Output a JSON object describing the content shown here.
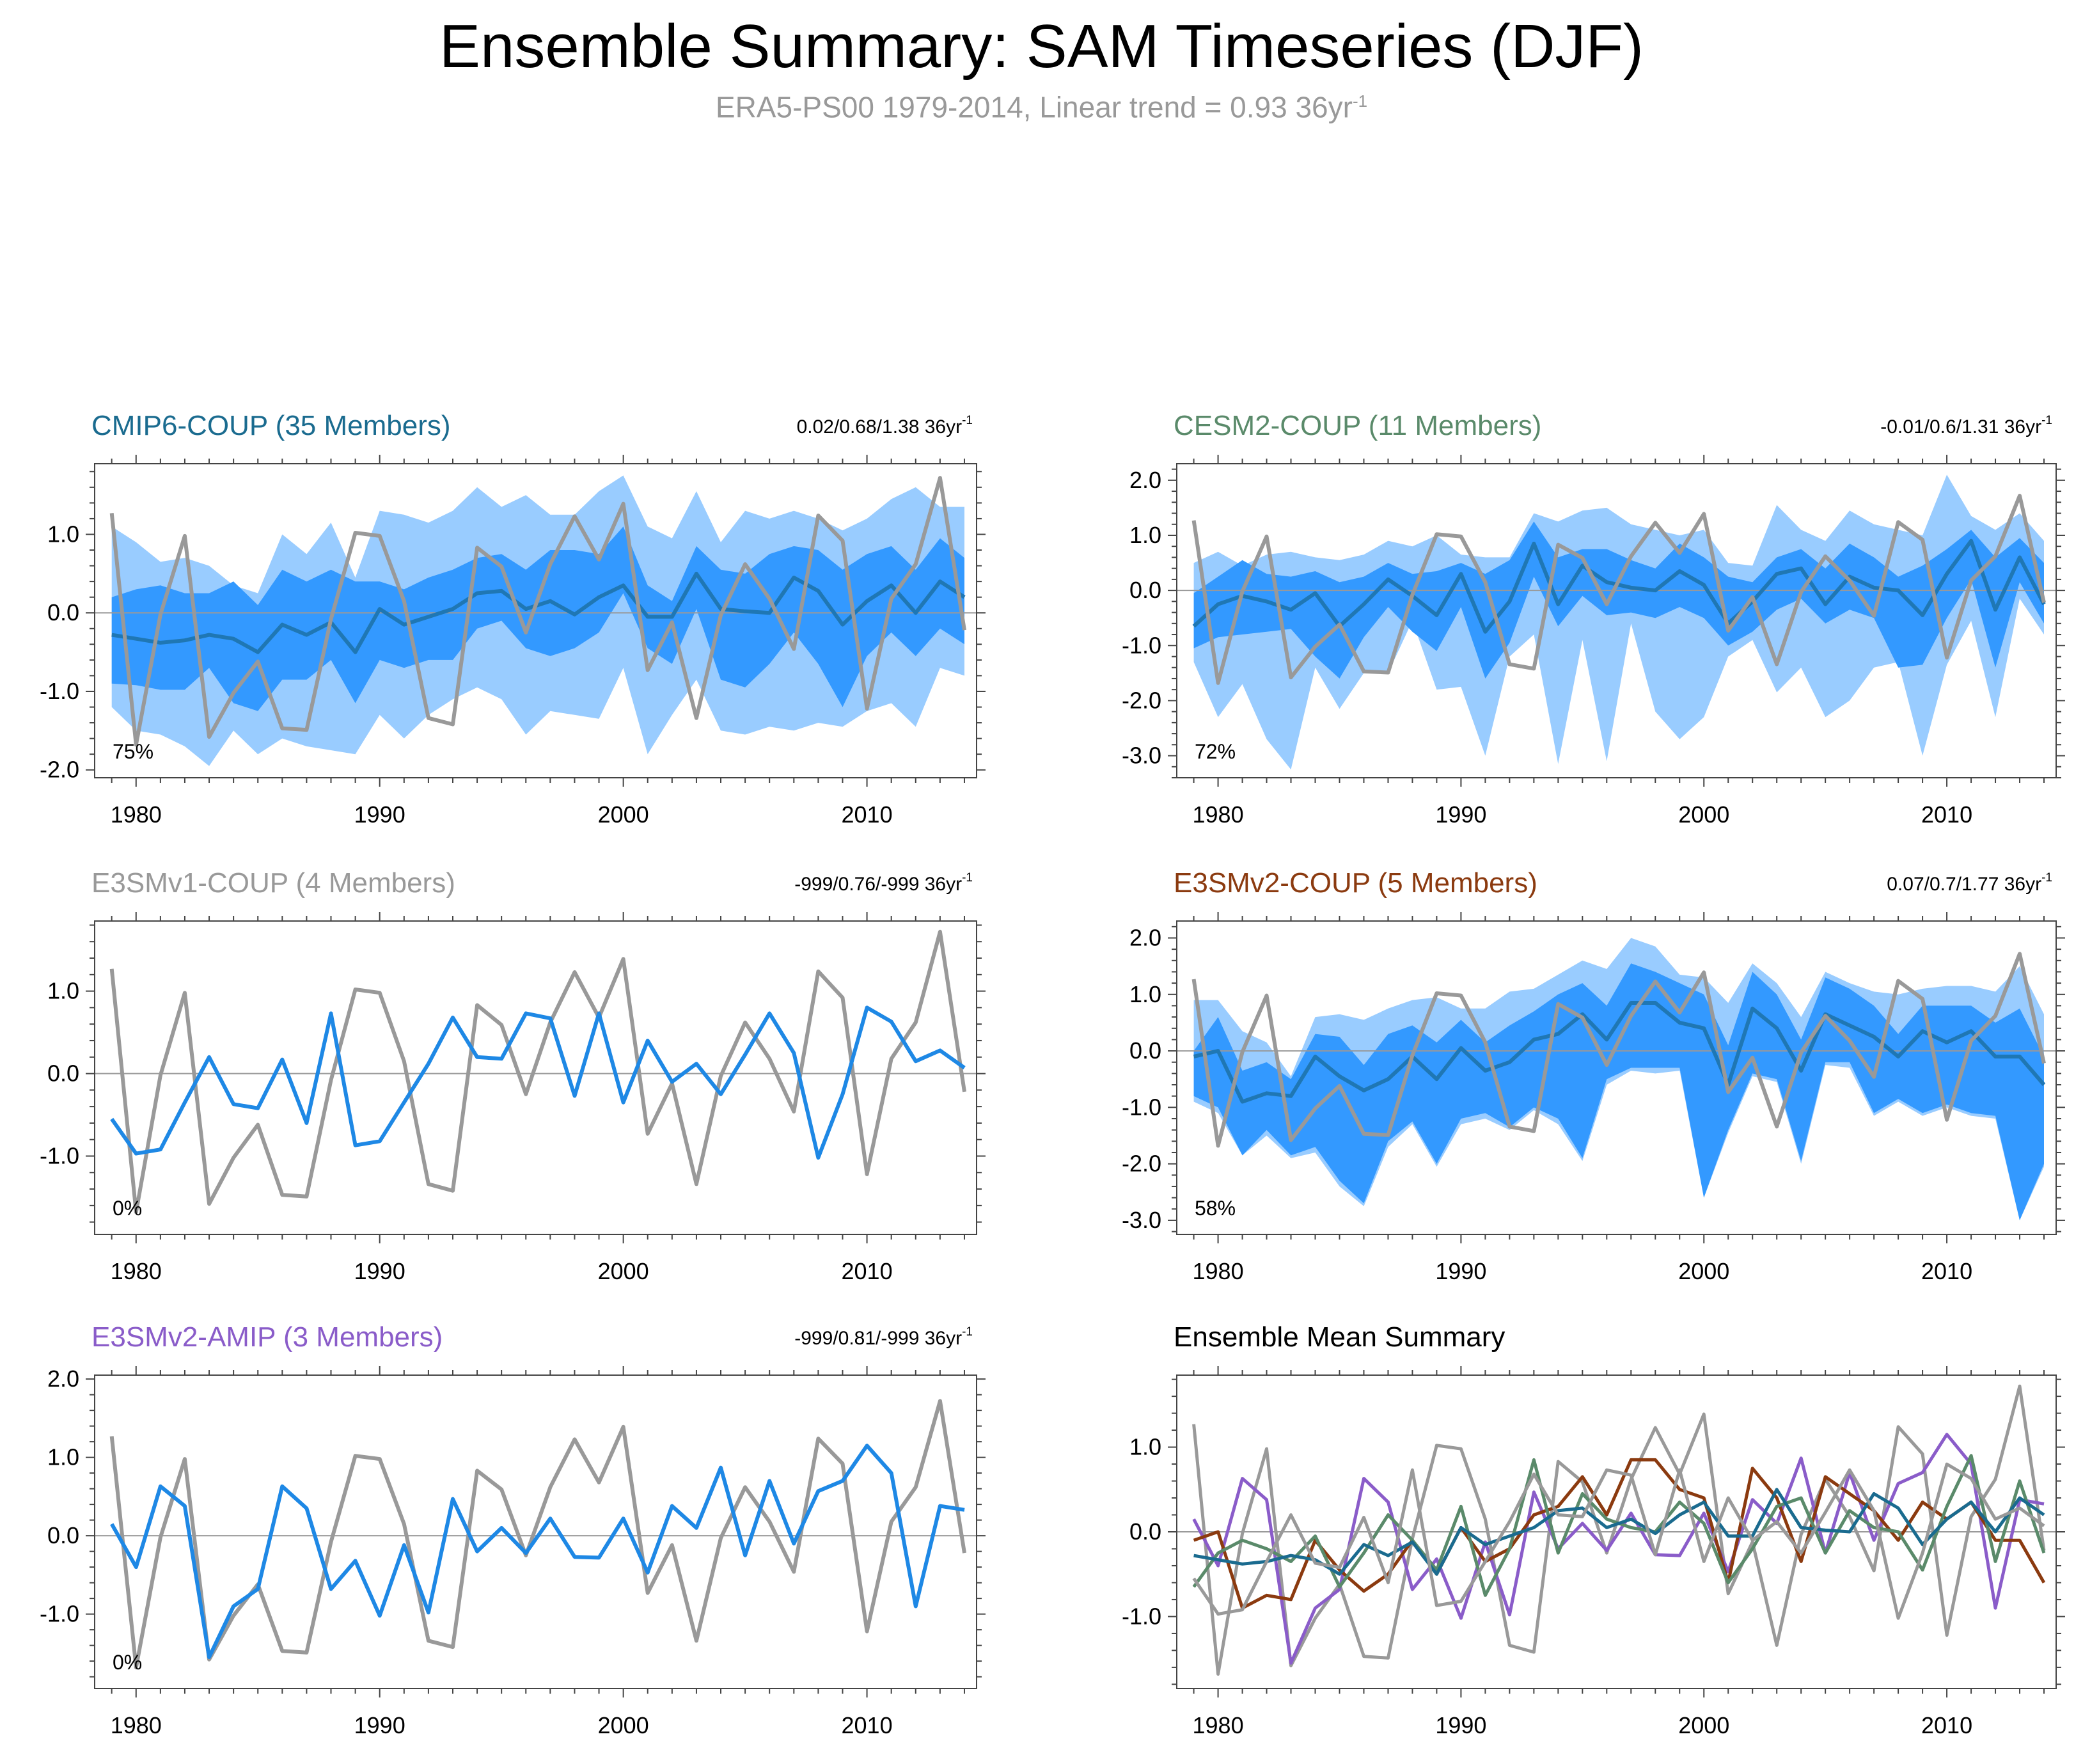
{
  "title": "Ensemble Summary: SAM Timeseries (DJF)",
  "subtitle": {
    "text": "ERA5-PS00 1979-2014, Linear trend = 0.93 36yr",
    "sup": "-1",
    "color": "#999999"
  },
  "chart_data": {
    "type": "line",
    "years": [
      1979,
      1980,
      1981,
      1982,
      1983,
      1984,
      1985,
      1986,
      1987,
      1988,
      1989,
      1990,
      1991,
      1992,
      1993,
      1994,
      1995,
      1996,
      1997,
      1998,
      1999,
      2000,
      2001,
      2002,
      2003,
      2004,
      2005,
      2006,
      2007,
      2008,
      2009,
      2010,
      2011,
      2012,
      2013,
      2014
    ],
    "xlim": [
      1978.3,
      2014.5
    ],
    "xticks": [
      1980,
      1990,
      2000,
      2010
    ],
    "observation": {
      "name": "ERA5-PS00",
      "color": "#999999",
      "values": [
        1.27,
        -1.68,
        -0.02,
        0.98,
        -1.58,
        -1.02,
        -0.62,
        -1.47,
        -1.49,
        -0.08,
        1.02,
        0.98,
        0.15,
        -1.34,
        -1.42,
        0.83,
        0.59,
        -0.25,
        0.62,
        1.23,
        0.68,
        1.39,
        -0.73,
        -0.12,
        -1.34,
        -0.03,
        0.62,
        0.18,
        -0.46,
        1.24,
        0.92,
        -1.22,
        0.18,
        0.62,
        1.72,
        -0.22
      ]
    },
    "panels": [
      {
        "id": "cmip6",
        "title": "CMIP6-COUP (35 Members)",
        "title_color": "#1a6b8f",
        "trend": "0.02/0.68/1.38 36yr",
        "trend_sup": "-1",
        "percent": "75%",
        "ylim": [
          -2.1,
          1.9
        ],
        "yticks": [
          1.0,
          0.0,
          -1.0,
          -2.0
        ],
        "ytick_labels": [
          "1.0",
          "0.0",
          "-1.0",
          "-2.0"
        ],
        "mean_color": "#1f77b4",
        "mean": [
          -0.28,
          -0.33,
          -0.38,
          -0.35,
          -0.28,
          -0.33,
          -0.5,
          -0.15,
          -0.28,
          -0.12,
          -0.5,
          0.05,
          -0.15,
          -0.05,
          0.05,
          0.25,
          0.28,
          0.05,
          0.15,
          -0.02,
          0.2,
          0.35,
          -0.05,
          -0.05,
          0.5,
          0.05,
          0.02,
          0.0,
          0.45,
          0.28,
          -0.15,
          0.15,
          0.35,
          0.0,
          0.4,
          0.2
        ],
        "inner_lo": [
          -0.9,
          -0.92,
          -0.98,
          -0.98,
          -0.7,
          -1.15,
          -1.25,
          -0.85,
          -0.85,
          -0.6,
          -1.15,
          -0.6,
          -0.7,
          -0.6,
          -0.6,
          -0.2,
          -0.1,
          -0.45,
          -0.55,
          -0.45,
          -0.25,
          0.25,
          -0.45,
          -0.65,
          0.05,
          -0.85,
          -0.95,
          -0.65,
          -0.25,
          -0.65,
          -1.2,
          -0.55,
          -0.25,
          -0.55,
          -0.2,
          -0.4
        ],
        "inner_hi": [
          0.2,
          0.3,
          0.35,
          0.25,
          0.25,
          0.4,
          0.1,
          0.55,
          0.4,
          0.55,
          0.4,
          0.4,
          0.3,
          0.45,
          0.55,
          0.7,
          0.75,
          0.55,
          0.8,
          0.8,
          0.75,
          1.1,
          0.35,
          0.15,
          0.85,
          0.55,
          0.5,
          0.75,
          0.85,
          0.8,
          0.55,
          0.75,
          0.85,
          0.55,
          0.95,
          0.7
        ],
        "outer_lo": [
          -1.2,
          -1.5,
          -1.55,
          -1.7,
          -1.95,
          -1.5,
          -1.8,
          -1.6,
          -1.7,
          -1.75,
          -1.8,
          -1.3,
          -1.6,
          -1.3,
          -1.1,
          -0.95,
          -1.1,
          -1.55,
          -1.25,
          -1.3,
          -1.35,
          -0.7,
          -1.8,
          -1.3,
          -0.85,
          -1.5,
          -1.55,
          -1.45,
          -1.5,
          -1.4,
          -1.45,
          -1.25,
          -1.15,
          -1.45,
          -0.7,
          -0.8
        ],
        "outer_hi": [
          1.1,
          0.9,
          0.65,
          0.7,
          0.6,
          0.35,
          0.25,
          1.0,
          0.75,
          1.15,
          0.45,
          1.3,
          1.25,
          1.15,
          1.3,
          1.6,
          1.35,
          1.5,
          1.25,
          1.25,
          1.55,
          1.75,
          1.1,
          0.95,
          1.55,
          0.9,
          1.3,
          1.2,
          1.3,
          1.2,
          1.05,
          1.2,
          1.45,
          1.6,
          1.35,
          1.35
        ],
        "lines": []
      },
      {
        "id": "cesm2",
        "title": "CESM2-COUP (11 Members)",
        "title_color": "#5a8a6a",
        "trend": "-0.01/0.6/1.31 36yr",
        "trend_sup": "-1",
        "percent": "72%",
        "ylim": [
          -3.4,
          2.3
        ],
        "yticks": [
          2.0,
          1.0,
          0.0,
          -1.0,
          -2.0,
          -3.0
        ],
        "ytick_labels": [
          "2.0",
          "1.0",
          "0.0",
          "-1.0",
          "-2.0",
          "-3.0"
        ],
        "mean_color": "#1f77b4",
        "mean": [
          -0.65,
          -0.25,
          -0.1,
          -0.2,
          -0.35,
          -0.05,
          -0.65,
          -0.25,
          0.2,
          -0.1,
          -0.45,
          0.3,
          -0.75,
          -0.2,
          0.85,
          -0.25,
          0.45,
          0.15,
          0.05,
          0.0,
          0.35,
          0.1,
          -0.6,
          -0.2,
          0.3,
          0.4,
          -0.25,
          0.25,
          0.05,
          0.0,
          -0.45,
          0.3,
          0.9,
          -0.35,
          0.6,
          -0.25
        ],
        "inner_lo": [
          -1.05,
          -0.85,
          -0.8,
          -0.75,
          -0.7,
          -1.2,
          -1.6,
          -0.85,
          -0.3,
          -0.75,
          -1.1,
          -0.3,
          -1.6,
          -0.95,
          0.25,
          -0.65,
          -0.1,
          -0.45,
          -0.4,
          -0.5,
          -0.3,
          -0.5,
          -1.0,
          -0.75,
          -0.35,
          -0.15,
          -0.6,
          -0.35,
          -0.5,
          -1.4,
          -1.35,
          -0.5,
          0.2,
          -1.4,
          0.15,
          -0.6
        ],
        "inner_hi": [
          -0.05,
          0.25,
          0.55,
          0.3,
          0.25,
          0.35,
          0.15,
          0.25,
          0.5,
          0.3,
          0.35,
          0.5,
          0.3,
          0.55,
          1.25,
          0.6,
          0.75,
          0.75,
          0.55,
          0.4,
          0.85,
          0.6,
          0.25,
          0.15,
          0.6,
          0.75,
          0.4,
          0.85,
          0.6,
          0.25,
          0.45,
          0.75,
          1.1,
          0.6,
          0.95,
          0.5
        ],
        "outer_lo": [
          -1.3,
          -2.3,
          -1.7,
          -2.7,
          -3.25,
          -1.4,
          -2.15,
          -1.5,
          -1.5,
          -0.55,
          -1.8,
          -1.75,
          -3.0,
          -1.2,
          -0.8,
          -3.15,
          -0.9,
          -3.1,
          -0.6,
          -2.2,
          -2.7,
          -2.3,
          -1.2,
          -0.9,
          -1.85,
          -1.4,
          -2.3,
          -2.0,
          -1.4,
          -1.3,
          -3.0,
          -1.35,
          -0.55,
          -2.3,
          -0.15,
          -0.8
        ],
        "outer_hi": [
          0.5,
          0.7,
          0.45,
          0.65,
          0.7,
          0.6,
          0.55,
          0.65,
          0.9,
          0.8,
          1.0,
          0.65,
          0.6,
          0.6,
          1.4,
          1.25,
          1.45,
          1.5,
          1.2,
          1.1,
          1.0,
          1.1,
          0.5,
          0.45,
          1.55,
          1.1,
          0.9,
          1.45,
          1.2,
          1.1,
          1.0,
          2.1,
          1.35,
          1.1,
          1.4,
          0.9
        ],
        "lines": []
      },
      {
        "id": "e3smv1",
        "title": "E3SMv1-COUP (4 Members)",
        "title_color": "#999999",
        "trend": "-999/0.76/-999 36yr",
        "trend_sup": "-1",
        "percent": "0%",
        "ylim": [
          -1.95,
          1.85
        ],
        "yticks": [
          1.0,
          0.0,
          -1.0
        ],
        "ytick_labels": [
          "1.0",
          "0.0",
          "-1.0"
        ],
        "mean_color": "#1e88e5",
        "mean": [
          -0.55,
          -0.97,
          -0.92,
          -0.35,
          0.2,
          -0.37,
          -0.42,
          0.17,
          -0.6,
          0.73,
          -0.87,
          -0.82,
          -0.35,
          0.12,
          0.68,
          0.2,
          0.18,
          0.73,
          0.67,
          -0.27,
          0.73,
          -0.35,
          0.4,
          -0.1,
          0.12,
          -0.25,
          0.23,
          0.73,
          0.25,
          -1.02,
          -0.25,
          0.8,
          0.63,
          0.15,
          0.28,
          0.07
        ],
        "lines": []
      },
      {
        "id": "e3smv2c",
        "title": "E3SMv2-COUP (5 Members)",
        "title_color": "#8b3a0f",
        "trend": "0.07/0.7/1.77 36yr",
        "trend_sup": "-1",
        "percent": "58%",
        "ylim": [
          -3.25,
          2.3
        ],
        "yticks": [
          2.0,
          1.0,
          0.0,
          -1.0,
          -2.0,
          -3.0
        ],
        "ytick_labels": [
          "2.0",
          "1.0",
          "0.0",
          "-1.0",
          "-2.0",
          "-3.0"
        ],
        "mean_color": "#1f77b4",
        "mean": [
          -0.1,
          0.0,
          -0.9,
          -0.75,
          -0.8,
          -0.1,
          -0.45,
          -0.7,
          -0.5,
          -0.1,
          -0.5,
          0.05,
          -0.35,
          -0.2,
          0.2,
          0.3,
          0.65,
          0.2,
          0.85,
          0.85,
          0.5,
          0.4,
          -0.6,
          0.75,
          0.4,
          -0.35,
          0.65,
          0.45,
          0.25,
          -0.1,
          0.35,
          0.15,
          0.35,
          -0.1,
          -0.1,
          -0.6
        ],
        "inner_lo": [
          -0.8,
          -1.0,
          -1.85,
          -1.4,
          -1.85,
          -1.7,
          -2.3,
          -2.7,
          -1.6,
          -1.25,
          -2.0,
          -1.2,
          -1.1,
          -1.35,
          -1.0,
          -1.2,
          -1.9,
          -0.5,
          -0.3,
          -0.3,
          -0.3,
          -2.6,
          -1.4,
          -0.4,
          -0.5,
          -1.95,
          -0.2,
          -0.2,
          -1.1,
          -0.85,
          -1.1,
          -0.95,
          -1.1,
          -1.15,
          -3.0,
          -2.0
        ],
        "inner_hi": [
          0.0,
          0.6,
          -0.35,
          -0.2,
          -0.5,
          0.3,
          0.25,
          -0.25,
          0.3,
          0.45,
          0.15,
          0.55,
          0.15,
          0.45,
          0.7,
          1.0,
          1.2,
          0.8,
          1.55,
          1.4,
          1.2,
          1.0,
          0.1,
          1.4,
          1.0,
          0.2,
          1.3,
          1.1,
          0.8,
          0.3,
          0.8,
          0.8,
          0.8,
          0.5,
          0.75,
          -0.1
        ],
        "outer_lo": [
          -0.9,
          -1.1,
          -1.85,
          -1.5,
          -1.9,
          -1.8,
          -2.4,
          -2.75,
          -1.7,
          -1.3,
          -2.05,
          -1.3,
          -1.2,
          -1.4,
          -1.05,
          -1.3,
          -1.95,
          -0.6,
          -0.35,
          -0.4,
          -0.35,
          -2.6,
          -1.45,
          -0.45,
          -0.55,
          -2.0,
          -0.25,
          -0.3,
          -1.15,
          -0.9,
          -1.15,
          -1.0,
          -1.15,
          -1.2,
          -3.0,
          -2.05
        ],
        "outer_hi": [
          0.9,
          0.9,
          0.35,
          0.15,
          -0.45,
          0.6,
          0.65,
          0.55,
          0.75,
          0.9,
          0.95,
          0.75,
          0.75,
          1.05,
          1.1,
          1.35,
          1.6,
          1.45,
          2.0,
          1.85,
          1.35,
          1.3,
          0.85,
          1.55,
          1.2,
          0.6,
          1.4,
          1.2,
          1.05,
          1.0,
          1.1,
          1.15,
          1.15,
          1.05,
          1.5,
          0.65
        ],
        "lines": []
      },
      {
        "id": "e3smv2a",
        "title": "E3SMv2-AMIP (3 Members)",
        "title_color": "#8a5cc9",
        "trend": "-999/0.81/-999 36yr",
        "trend_sup": "-1",
        "percent": "0%",
        "ylim": [
          -1.95,
          2.05
        ],
        "yticks": [
          2.0,
          1.0,
          0.0,
          -1.0
        ],
        "ytick_labels": [
          "2.0",
          "1.0",
          "0.0",
          "-1.0"
        ],
        "mean_color": "#1e88e5",
        "mean": [
          0.15,
          -0.4,
          0.63,
          0.38,
          -1.55,
          -0.9,
          -0.68,
          0.63,
          0.35,
          -0.68,
          -0.32,
          -1.02,
          -0.12,
          -0.98,
          0.47,
          -0.2,
          0.1,
          -0.22,
          0.22,
          -0.27,
          -0.28,
          0.22,
          -0.47,
          0.38,
          0.1,
          0.87,
          -0.25,
          0.7,
          -0.1,
          0.57,
          0.7,
          1.15,
          0.8,
          -0.9,
          0.38,
          0.33
        ],
        "lines": []
      },
      {
        "id": "summary",
        "title": "Ensemble Mean Summary",
        "title_color": "#000000",
        "trend": "",
        "trend_sup": "",
        "percent": "",
        "ylim": [
          -1.85,
          1.85
        ],
        "yticks": [
          1.0,
          0.0,
          -1.0
        ],
        "ytick_labels": [
          "1.0",
          "0.0",
          "-1.0"
        ],
        "mean_color": "",
        "mean": [],
        "lines": [
          {
            "name": "E3SMv1-COUP",
            "color": "#999999",
            "ref": "e3smv1"
          },
          {
            "name": "E3SMv2-AMIP",
            "color": "#8a5cc9",
            "ref": "e3smv2a"
          },
          {
            "name": "E3SMv2-COUP",
            "color": "#8b3a0f",
            "ref": "e3smv2c"
          },
          {
            "name": "CESM2-COUP",
            "color": "#5a8a6a",
            "ref": "cesm2"
          },
          {
            "name": "CMIP6-COUP",
            "color": "#1a6b8f",
            "ref": "cmip6"
          }
        ]
      }
    ],
    "band_colors": {
      "outer": "#99ccff",
      "inner": "#3399ff"
    }
  }
}
